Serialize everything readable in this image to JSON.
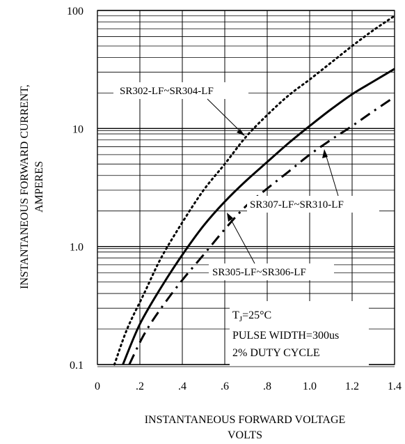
{
  "chart_data": {
    "type": "line",
    "xlabel_line1": "INSTANTANEOUS FORWARD VOLTAGE",
    "xlabel_line2": "VOLTS",
    "ylabel_line1": "INSTANTANEOUS FORWARD CURRENT,",
    "ylabel_line2": "AMPERES",
    "x_ticks": [
      "0",
      ".2",
      ".4",
      ".6",
      ".8",
      "1.0",
      "1.2",
      "1.4"
    ],
    "x_tick_values": [
      0,
      0.2,
      0.4,
      0.6,
      0.8,
      1.0,
      1.2,
      1.4
    ],
    "y_ticks": [
      "0.1",
      "1.0",
      "10",
      "100"
    ],
    "y_tick_values": [
      0.1,
      1,
      10,
      100
    ],
    "xlim": [
      0,
      1.4
    ],
    "ylim": [
      0.1,
      100
    ],
    "y_scale": "log",
    "grid": true,
    "series": [
      {
        "name": "SR302-LF~SR304-LF",
        "style": "dotted",
        "x": [
          0.08,
          0.14,
          0.22,
          0.3,
          0.4,
          0.5,
          0.6,
          0.7,
          0.8,
          0.9,
          1.0,
          1.1,
          1.2,
          1.3,
          1.4
        ],
        "y": [
          0.1,
          0.2,
          0.4,
          0.8,
          1.6,
          3.0,
          5.0,
          8.5,
          13,
          19,
          26,
          36,
          50,
          68,
          90
        ]
      },
      {
        "name": "SR305-LF~SR306-LF",
        "style": "solid",
        "x": [
          0.12,
          0.2,
          0.3,
          0.4,
          0.5,
          0.6,
          0.7,
          0.8,
          0.9,
          1.0,
          1.1,
          1.2,
          1.3,
          1.4
        ],
        "y": [
          0.1,
          0.22,
          0.45,
          0.85,
          1.5,
          2.4,
          3.6,
          5.2,
          7.5,
          10.5,
          14.5,
          19.5,
          25,
          32
        ]
      },
      {
        "name": "SR307-LF~SR310-LF",
        "style": "dash-dot",
        "x": [
          0.15,
          0.22,
          0.3,
          0.4,
          0.5,
          0.6,
          0.7,
          0.8,
          0.9,
          1.0,
          1.1,
          1.2,
          1.3,
          1.4
        ],
        "y": [
          0.1,
          0.18,
          0.3,
          0.52,
          0.85,
          1.4,
          2.2,
          3.1,
          4.3,
          6.0,
          8.0,
          10.5,
          14.0,
          18.5
        ]
      }
    ],
    "annotations": [
      "SR302-LF~SR304-LF",
      "SR307-LF~SR310-LF",
      "SR305-LF~SR306-LF"
    ],
    "conditions": {
      "tj_main": "T",
      "tj_sub": "J",
      "tj_value": "=25°C",
      "pulse": "PULSE WIDTH=300us",
      "duty": "2% DUTY CYCLE"
    }
  }
}
